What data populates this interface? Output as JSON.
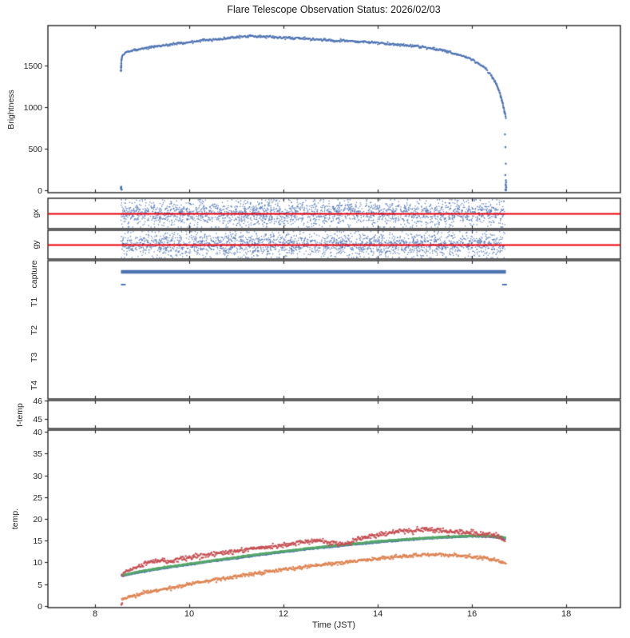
{
  "title": "Flare Telescope Observation Status: 2026/02/03",
  "colors": {
    "blue": "#4c72b0",
    "green": "#55a868",
    "red": "#c44e52",
    "orange": "#dd8452",
    "refline_red": "#e8000b",
    "axis": "#222222"
  },
  "chart_data": {
    "type": "scatter",
    "title": "Flare Telescope Observation Status: 2026/02/03",
    "xlabel": "Time (JST)",
    "xlim": [
      7.0,
      19.15
    ],
    "xticks": [
      8,
      10,
      12,
      14,
      16,
      18
    ],
    "observation_time_range_jst": [
      8.55,
      16.72
    ],
    "grid": false,
    "legend": null,
    "panels": [
      {
        "id": "brightness",
        "ylabel": "Brightness",
        "ylim": [
          -29,
          1981
        ],
        "yticks": [
          0,
          500,
          1000,
          1500
        ],
        "series": [
          {
            "name": "sun-brightness",
            "color": "blue",
            "style": "dense-dots",
            "noise_sd": 8,
            "dot_r": 1.1,
            "keypoints": [
              [
                8.55,
                1430
              ],
              [
                8.56,
                1560
              ],
              [
                8.58,
                1620
              ],
              [
                8.65,
                1655
              ],
              [
                8.8,
                1680
              ],
              [
                9.0,
                1706
              ],
              [
                9.3,
                1730
              ],
              [
                9.6,
                1752
              ],
              [
                10.0,
                1782
              ],
              [
                10.4,
                1808
              ],
              [
                10.8,
                1828
              ],
              [
                11.1,
                1845
              ],
              [
                11.35,
                1855
              ],
              [
                11.5,
                1846
              ],
              [
                11.7,
                1852
              ],
              [
                11.9,
                1836
              ],
              [
                12.1,
                1840
              ],
              [
                12.4,
                1825
              ],
              [
                12.6,
                1818
              ],
              [
                12.9,
                1808
              ],
              [
                13.1,
                1797
              ],
              [
                13.4,
                1800
              ],
              [
                13.6,
                1787
              ],
              [
                13.9,
                1775
              ],
              [
                14.1,
                1769
              ],
              [
                14.4,
                1752
              ],
              [
                14.6,
                1747
              ],
              [
                14.9,
                1724
              ],
              [
                15.1,
                1709
              ],
              [
                15.35,
                1684
              ],
              [
                15.6,
                1651
              ],
              [
                15.85,
                1607
              ],
              [
                16.05,
                1558
              ],
              [
                16.25,
                1478
              ],
              [
                16.4,
                1393
              ],
              [
                16.5,
                1298
              ],
              [
                16.58,
                1188
              ],
              [
                16.65,
                1048
              ],
              [
                16.7,
                920
              ],
              [
                16.72,
                878
              ]
            ],
            "outliers": [
              [
                8.55,
                22
              ],
              [
                8.557,
                42
              ],
              [
                8.565,
                8
              ],
              [
                8.552,
                33
              ],
              [
                8.56,
                15
              ],
              [
                16.7,
                672
              ],
              [
                16.71,
                518
              ],
              [
                16.717,
                320
              ],
              [
                16.708,
                182
              ],
              [
                16.72,
                120
              ],
              [
                16.715,
                72
              ],
              [
                16.725,
                36
              ],
              [
                16.72,
                14
              ],
              [
                16.71,
                4
              ],
              [
                16.722,
                0
              ],
              [
                16.718,
                55
              ],
              [
                16.724,
                95
              ]
            ]
          }
        ]
      },
      {
        "id": "gx",
        "ylabel": "gx",
        "ylim": [
          -1,
          1
        ],
        "yticks": [],
        "refline_y": 0,
        "series": [
          {
            "name": "guide-error-x",
            "color": "blue",
            "style": "random-scatter",
            "count": 2300,
            "xrange": [
              8.55,
              16.7
            ],
            "center": 0.0,
            "sigma": 0.42,
            "clip": 0.9,
            "dot_r": 0.8
          }
        ]
      },
      {
        "id": "gy",
        "ylabel": "gy",
        "ylim": [
          -1,
          1
        ],
        "yticks": [],
        "refline_y": 0,
        "series": [
          {
            "name": "guide-error-y",
            "color": "blue",
            "style": "random-scatter",
            "count": 2300,
            "xrange": [
              8.55,
              16.7
            ],
            "center": 0.0,
            "sigma": 0.42,
            "clip": 0.9,
            "dot_r": 0.8
          }
        ]
      },
      {
        "id": "capture",
        "row_labels": [
          "capture",
          "T1",
          "T2",
          "T3",
          "T4"
        ],
        "capture_series": {
          "name": "capture-status",
          "color": "blue",
          "on_segments": [
            [
              8.55,
              16.72
            ]
          ],
          "off_segments": [
            [
              8.55,
              8.65
            ],
            [
              16.64,
              16.74
            ]
          ]
        }
      },
      {
        "id": "f_temp",
        "ylabel": "f-temp",
        "ylim": [
          44.48,
          46.0
        ],
        "yticks": [
          45,
          46
        ],
        "series": []
      },
      {
        "id": "temp",
        "ylabel": "temp.",
        "ylim": [
          -0.37,
          40.37
        ],
        "yticks": [
          0,
          5,
          10,
          15,
          20,
          25,
          30,
          35,
          40
        ],
        "series": [
          {
            "name": "temp-sensor-blue",
            "color": "blue",
            "style": "dense-dots",
            "noise_sd": 0.06,
            "dot_r": 1.4,
            "keypoints": [
              [
                8.57,
                6.9
              ],
              [
                9.0,
                7.9
              ],
              [
                9.5,
                8.75
              ],
              [
                10.0,
                9.5
              ],
              [
                10.5,
                10.3
              ],
              [
                11.0,
                11.0
              ],
              [
                11.5,
                11.75
              ],
              [
                12.0,
                12.4
              ],
              [
                12.5,
                13.05
              ],
              [
                13.0,
                13.6
              ],
              [
                13.5,
                14.15
              ],
              [
                14.0,
                14.65
              ],
              [
                14.5,
                15.1
              ],
              [
                15.0,
                15.5
              ],
              [
                15.5,
                15.8
              ],
              [
                16.0,
                16.0
              ],
              [
                16.3,
                16.0
              ],
              [
                16.55,
                15.7
              ],
              [
                16.7,
                15.35
              ]
            ]
          },
          {
            "name": "temp-sensor-green",
            "color": "green",
            "style": "dense-dots",
            "noise_sd": 0.06,
            "dot_r": 1.4,
            "keypoints": [
              [
                8.57,
                7.05
              ],
              [
                9.0,
                8.05
              ],
              [
                9.5,
                8.9
              ],
              [
                10.0,
                9.65
              ],
              [
                10.5,
                10.45
              ],
              [
                11.0,
                11.15
              ],
              [
                11.5,
                11.9
              ],
              [
                12.0,
                12.55
              ],
              [
                12.5,
                13.2
              ],
              [
                13.0,
                13.75
              ],
              [
                13.5,
                14.3
              ],
              [
                14.0,
                14.8
              ],
              [
                14.5,
                15.25
              ],
              [
                15.0,
                15.6
              ],
              [
                15.5,
                15.9
              ],
              [
                16.0,
                16.1
              ],
              [
                16.3,
                16.1
              ],
              [
                16.55,
                15.9
              ],
              [
                16.7,
                15.7
              ]
            ]
          },
          {
            "name": "temp-sensor-red",
            "color": "red",
            "style": "dense-dots",
            "noise_sd": 0.28,
            "dot_r": 1.2,
            "keypoints": [
              [
                8.57,
                7.2
              ],
              [
                8.7,
                8.3
              ],
              [
                9.0,
                9.4
              ],
              [
                9.2,
                10.1
              ],
              [
                9.4,
                10.45
              ],
              [
                9.6,
                10.2
              ],
              [
                9.8,
                10.8
              ],
              [
                10.0,
                11.2
              ],
              [
                10.3,
                11.6
              ],
              [
                10.6,
                12.1
              ],
              [
                11.0,
                12.6
              ],
              [
                11.3,
                13.2
              ],
              [
                11.6,
                13.45
              ],
              [
                11.9,
                13.8
              ],
              [
                12.2,
                14.3
              ],
              [
                12.5,
                14.9
              ],
              [
                12.8,
                15.0
              ],
              [
                13.1,
                14.6
              ],
              [
                13.35,
                14.15
              ],
              [
                13.5,
                15.2
              ],
              [
                13.8,
                15.9
              ],
              [
                14.1,
                16.4
              ],
              [
                14.4,
                17.1
              ],
              [
                14.7,
                17.3
              ],
              [
                14.9,
                17.6
              ],
              [
                15.1,
                17.45
              ],
              [
                15.4,
                17.2
              ],
              [
                15.7,
                17.0
              ],
              [
                16.0,
                16.8
              ],
              [
                16.3,
                16.4
              ],
              [
                16.5,
                16.15
              ],
              [
                16.6,
                15.8
              ],
              [
                16.7,
                15.1
              ]
            ],
            "outliers": [
              [
                8.56,
                0.3
              ],
              [
                8.575,
                0.6
              ]
            ]
          },
          {
            "name": "temp-sensor-orange",
            "color": "orange",
            "style": "dense-dots",
            "noise_sd": 0.2,
            "dot_r": 1.2,
            "keypoints": [
              [
                8.57,
                1.6
              ],
              [
                9.0,
                2.9
              ],
              [
                9.5,
                4.0
              ],
              [
                10.0,
                5.0
              ],
              [
                10.5,
                5.95
              ],
              [
                11.0,
                6.8
              ],
              [
                11.5,
                7.6
              ],
              [
                12.0,
                8.35
              ],
              [
                12.5,
                9.05
              ],
              [
                13.0,
                9.7
              ],
              [
                13.5,
                10.3
              ],
              [
                14.0,
                10.9
              ],
              [
                14.4,
                11.3
              ],
              [
                14.8,
                11.6
              ],
              [
                15.1,
                11.8
              ],
              [
                15.4,
                11.8
              ],
              [
                15.7,
                11.6
              ],
              [
                16.0,
                11.3
              ],
              [
                16.3,
                10.9
              ],
              [
                16.5,
                10.5
              ],
              [
                16.65,
                10.05
              ],
              [
                16.72,
                9.8
              ]
            ]
          }
        ]
      }
    ]
  }
}
